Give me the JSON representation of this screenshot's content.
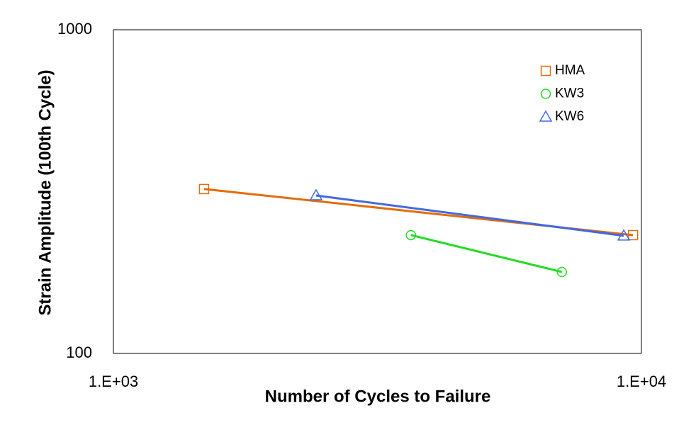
{
  "chart_data": {
    "type": "line",
    "xlabel": "Number of Cycles to Failure",
    "ylabel": "Strain Amplitude (100th Cycle)",
    "xscale": "log",
    "yscale": "log",
    "xlim": [
      1000,
      10000
    ],
    "xticks": [
      {
        "value": 1000,
        "label": "1.E+03"
      },
      {
        "value": 10000,
        "label": "1.E+04"
      }
    ],
    "ylim": [
      100,
      1000
    ],
    "yticks": [
      100,
      1000
    ],
    "grid": false,
    "legend": "upper right",
    "series": [
      {
        "name": "HMA",
        "color": "#e46c0a",
        "marker": "square",
        "x": [
          1485,
          9640
        ],
        "values": [
          322,
          232
        ]
      },
      {
        "name": "KW3",
        "color": "#22dd22",
        "marker": "circle",
        "x": [
          3660,
          7070
        ],
        "values": [
          232,
          178.5
        ]
      },
      {
        "name": "KW6",
        "color": "#4169e1",
        "marker": "triangle",
        "x": [
          2420,
          9260
        ],
        "values": [
          307.6,
          231
        ]
      }
    ]
  }
}
